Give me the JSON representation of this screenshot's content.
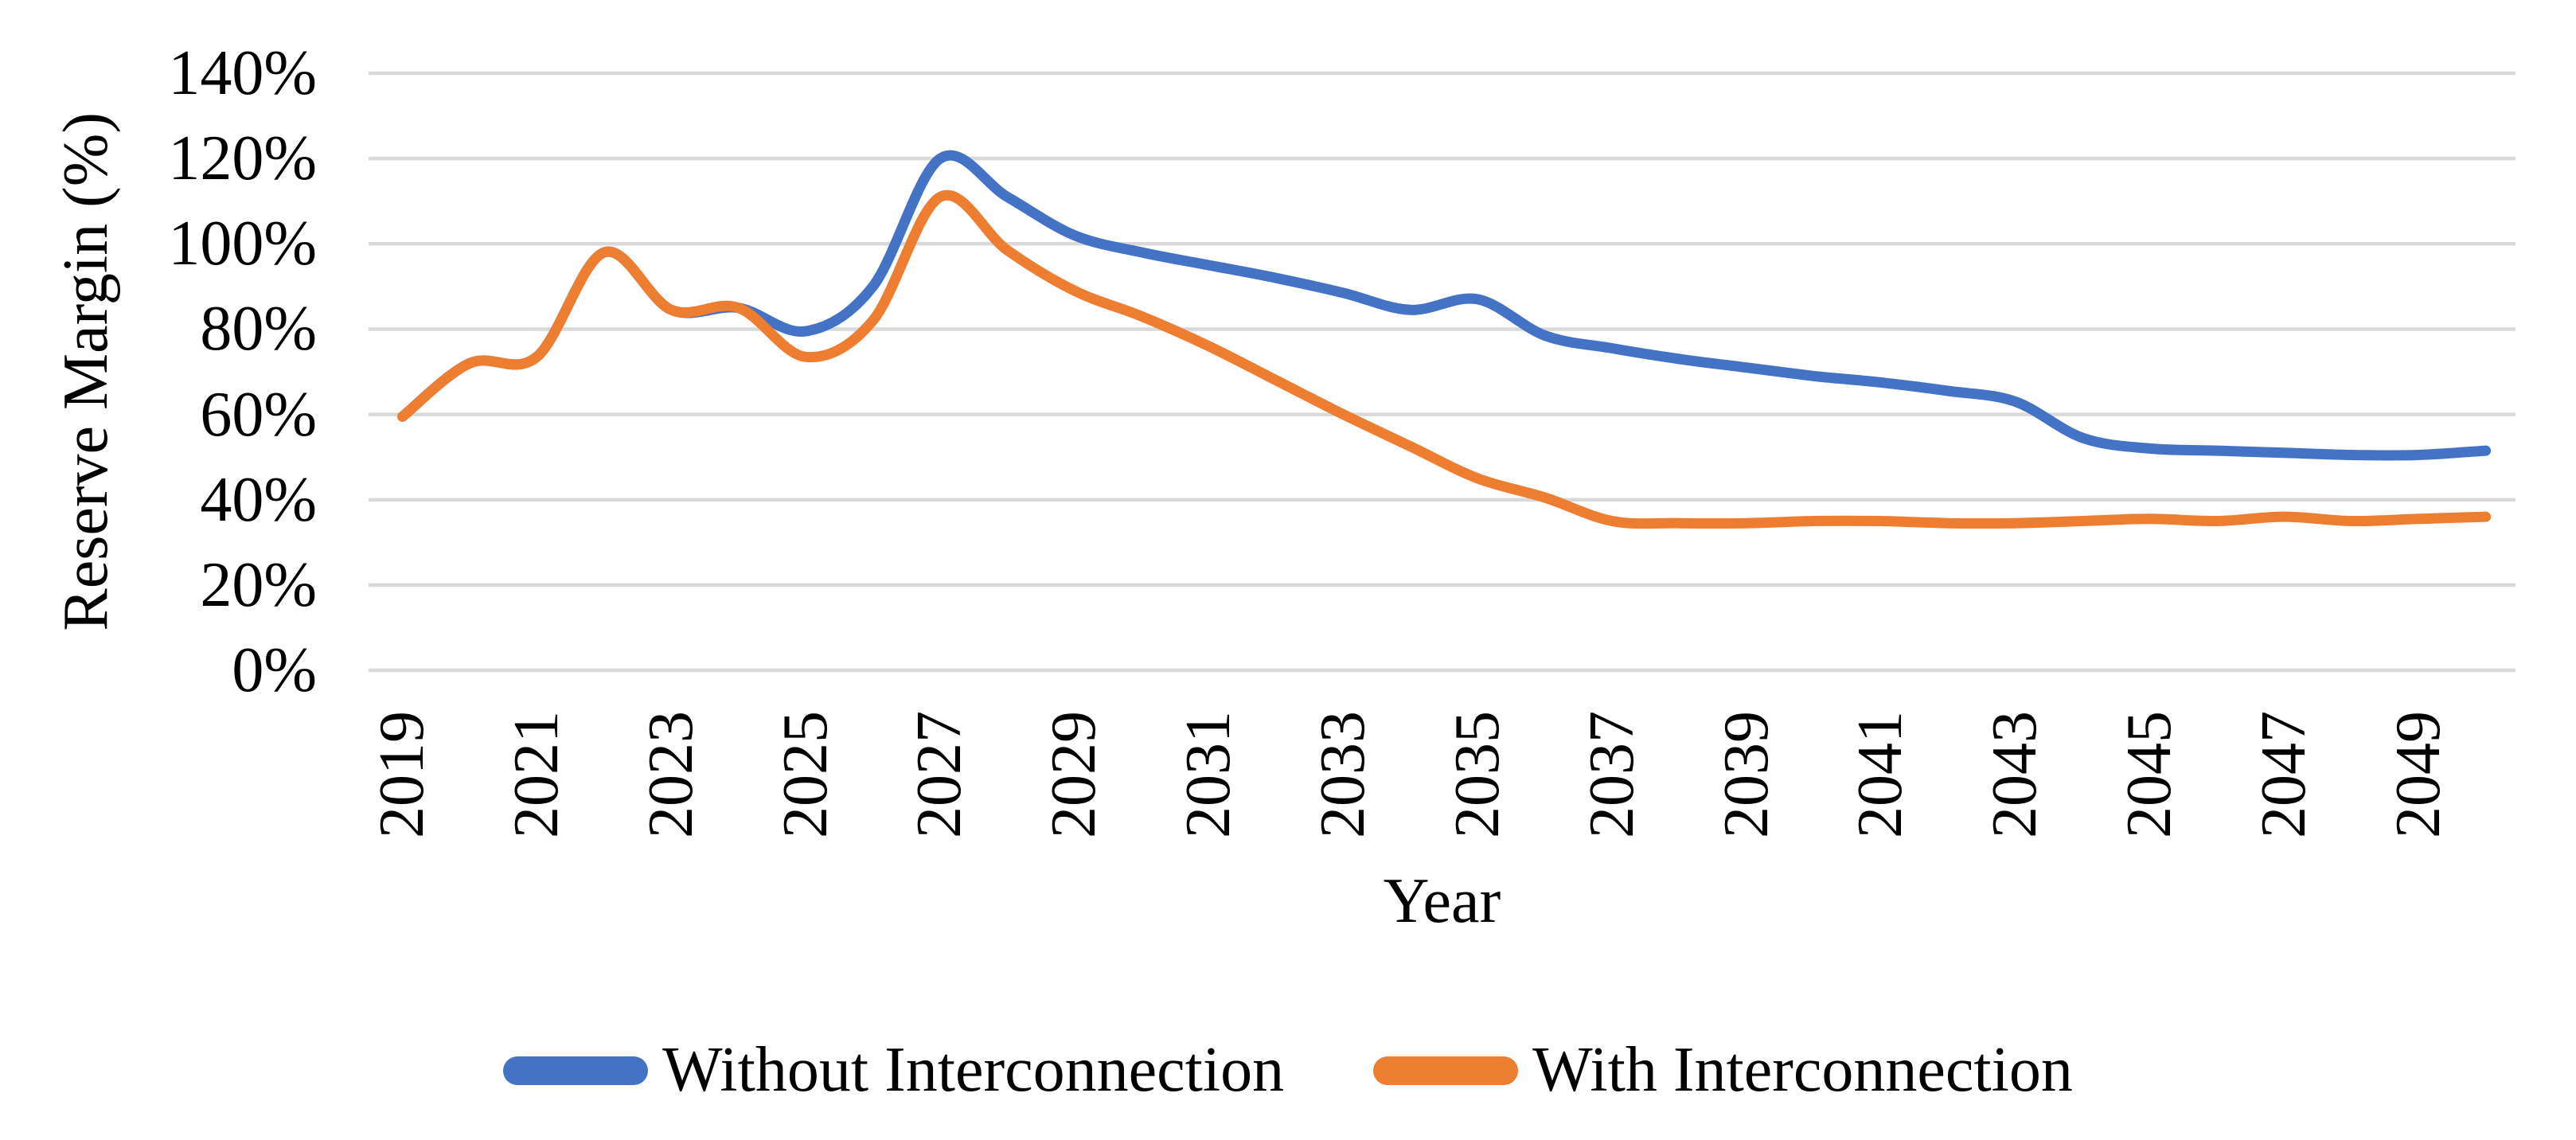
{
  "chart_data": {
    "type": "line",
    "title": "",
    "xlabel": "Year",
    "ylabel": "Reserve Margin (%)",
    "x": [
      2019,
      2020,
      2021,
      2022,
      2023,
      2024,
      2025,
      2026,
      2027,
      2028,
      2029,
      2030,
      2031,
      2032,
      2033,
      2034,
      2035,
      2036,
      2037,
      2038,
      2039,
      2040,
      2041,
      2042,
      2043,
      2044,
      2045,
      2046,
      2047,
      2048,
      2049,
      2050
    ],
    "series": [
      {
        "name": "Without Interconnection",
        "color": "#4472C4",
        "values": [
          59.5,
          72,
          73.5,
          98,
          84.5,
          85,
          79.5,
          90,
          120,
          111,
          102,
          98,
          95,
          92,
          88.5,
          84.5,
          87,
          78.5,
          75.5,
          73,
          71,
          69,
          67.5,
          65.5,
          63,
          54.5,
          52,
          51.5,
          51,
          50.5,
          50.5,
          51.5
        ]
      },
      {
        "name": "With Interconnection",
        "color": "#ED7D31",
        "values": [
          59.5,
          72,
          73.5,
          98,
          84.5,
          85,
          73.5,
          82,
          111,
          98.5,
          89,
          83,
          76,
          68,
          60,
          52.5,
          45,
          40.5,
          35,
          34.5,
          34.5,
          35,
          35,
          34.5,
          34.5,
          35,
          35.5,
          35,
          36,
          35,
          35.5,
          36
        ]
      }
    ],
    "ylim": [
      0,
      140
    ],
    "ytick_step": 20,
    "y_tick_labels": [
      "0%",
      "20%",
      "40%",
      "60%",
      "80%",
      "100%",
      "120%",
      "140%"
    ],
    "x_tick_labels": [
      "2019",
      "2021",
      "2023",
      "2025",
      "2027",
      "2029",
      "2031",
      "2033",
      "2035",
      "2037",
      "2039",
      "2041",
      "2043",
      "2045",
      "2047",
      "2049"
    ],
    "grid": "horizontal",
    "gridline_color": "#D9D9D9",
    "legend_position": "bottom"
  },
  "legend": {
    "items": [
      {
        "label": "Without Interconnection",
        "color": "#4472C4"
      },
      {
        "label": "With Interconnection",
        "color": "#ED7D31"
      }
    ]
  }
}
